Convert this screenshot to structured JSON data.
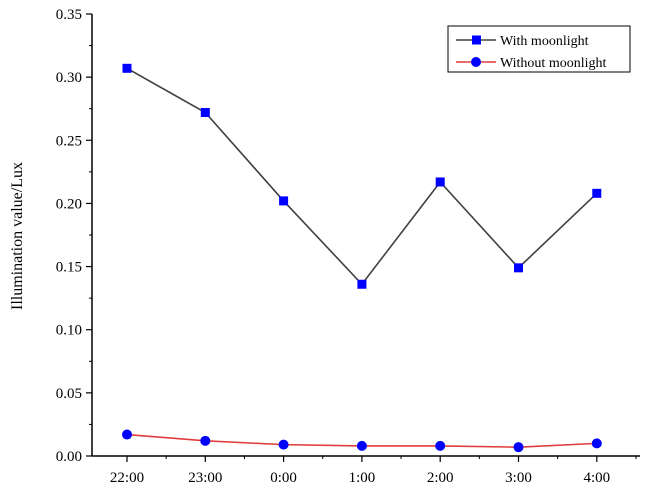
{
  "chart_data": {
    "type": "line",
    "title": "",
    "xlabel": "",
    "ylabel": "Illumination value/Lux",
    "categories": [
      "22:00",
      "23:00",
      "0:00",
      "1:00",
      "2:00",
      "3:00",
      "4:00"
    ],
    "ylim": [
      0,
      0.35
    ],
    "yticks": [
      "0.00",
      "0.05",
      "0.10",
      "0.15",
      "0.20",
      "0.25",
      "0.30",
      "0.35"
    ],
    "grid": false,
    "legend_position": "top-right",
    "series": [
      {
        "name": "With moonlight",
        "values": [
          0.307,
          0.272,
          0.202,
          0.136,
          0.217,
          0.149,
          0.208
        ],
        "line_color": "#404040",
        "marker_color": "#0000ff",
        "marker": "square"
      },
      {
        "name": "Without moonlight",
        "values": [
          0.017,
          0.012,
          0.009,
          0.008,
          0.008,
          0.007,
          0.01
        ],
        "line_color": "#e03c3c",
        "marker_color": "#0000ff",
        "marker": "circle"
      }
    ]
  }
}
